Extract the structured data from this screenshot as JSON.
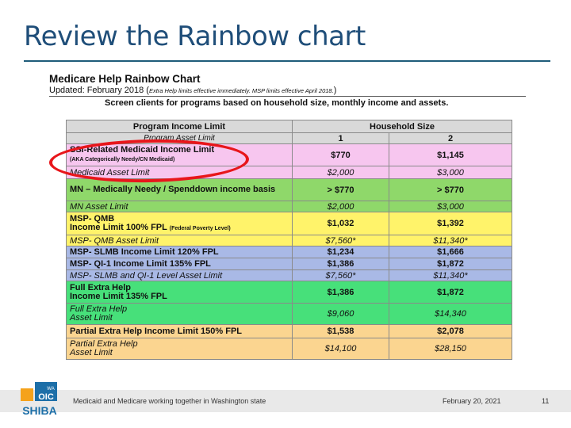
{
  "slide": {
    "title": "Review the Rainbow chart"
  },
  "chart": {
    "heading": "Medicare Help Rainbow Chart",
    "updated_label": "Updated: February 2018 (",
    "updated_note": "Extra Help limits effective immediately. MSP limits effective April 2018.",
    "updated_close": ")",
    "subheading": "Screen clients for programs based on household size, monthly income and assets.",
    "header_program": "Program Income Limit",
    "header_program_asset": "Program Asset Limit",
    "header_household": "Household Size",
    "col1": "1",
    "col2": "2",
    "rows": [
      {
        "label": "SSI-Related Medicaid Income Limit",
        "sub": "(AKA Categorically Needy/CN Medicaid)",
        "v1": "$770",
        "v2": "$1,145"
      },
      {
        "label": "Medicaid Asset Limit",
        "v1": "$2,000",
        "v2": "$3,000"
      },
      {
        "label": "MN – Medically Needy / Spenddown income basis",
        "v1": "> $770",
        "v2": "> $770"
      },
      {
        "label": "MN Asset Limit",
        "v1": "$2,000",
        "v2": "$3,000"
      },
      {
        "label": "MSP- QMB",
        "label2": "Income Limit 100% FPL",
        "sub": "(Federal Poverty Level)",
        "v1": "$1,032",
        "v2": "$1,392"
      },
      {
        "label": "MSP- QMB Asset Limit",
        "v1": "$7,560*",
        "v2": "$11,340*"
      },
      {
        "label": "MSP- SLMB Income Limit 120% FPL",
        "v1": "$1,234",
        "v2": "$1,666"
      },
      {
        "label": "MSP- QI-1  Income Limit 135% FPL",
        "v1": "$1,386",
        "v2": "$1,872"
      },
      {
        "label": "MSP- SLMB and QI-1 Level Asset Limit",
        "v1": "$7,560*",
        "v2": "$11,340*"
      },
      {
        "label": "Full Extra Help",
        "label2": "Income Limit 135% FPL",
        "v1": "$1,386",
        "v2": "$1,872"
      },
      {
        "label": "Full Extra Help",
        "label2": " Asset Limit",
        "v1": "$9,060",
        "v2": "$14,340"
      },
      {
        "label": "Partial Extra Help Income Limit 150% FPL",
        "v1": "$1,538",
        "v2": "$2,078"
      },
      {
        "label": "Partial Extra Help",
        "label2": " Asset Limit",
        "v1": "$14,100",
        "v2": "$28,150"
      }
    ]
  },
  "footer": {
    "text": "Medicaid and Medicare working together in Washington state",
    "date": "February 20, 2021",
    "page": "11"
  },
  "logo": {
    "wa": "WA",
    "oic": "OIC",
    "shiba": "SHIBA"
  },
  "colors": {
    "accent": "#1f5c7a",
    "circle": "#e8161b"
  }
}
